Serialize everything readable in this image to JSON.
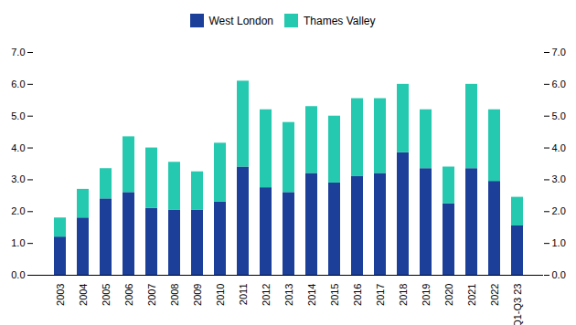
{
  "chart_data": {
    "type": "bar",
    "stacked": true,
    "legend": "top",
    "grid": false,
    "categories": [
      "2003",
      "2004",
      "2005",
      "2006",
      "2007",
      "2008",
      "2009",
      "2010",
      "2011",
      "2012",
      "2013",
      "2014",
      "2015",
      "2016",
      "2017",
      "2018",
      "2019",
      "2020",
      "2021",
      "2022",
      "Q1-Q3 23"
    ],
    "series": [
      {
        "name": "West London",
        "color": "#1c3f99",
        "values": [
          1.2,
          1.8,
          2.4,
          2.6,
          2.1,
          2.05,
          2.05,
          2.3,
          3.4,
          2.75,
          2.6,
          3.2,
          2.9,
          3.1,
          3.2,
          3.85,
          3.35,
          2.25,
          3.35,
          2.95,
          1.55
        ]
      },
      {
        "name": "Thames Valley",
        "color": "#25c9b0",
        "values": [
          0.6,
          0.9,
          0.95,
          1.75,
          1.9,
          1.5,
          1.2,
          1.85,
          2.7,
          2.45,
          2.2,
          2.1,
          2.1,
          2.45,
          2.35,
          2.15,
          1.85,
          1.15,
          2.65,
          2.25,
          0.9
        ]
      }
    ],
    "ylim": [
      0,
      7
    ],
    "yticks": [
      0,
      1,
      2,
      3,
      4,
      5,
      6,
      7
    ]
  }
}
